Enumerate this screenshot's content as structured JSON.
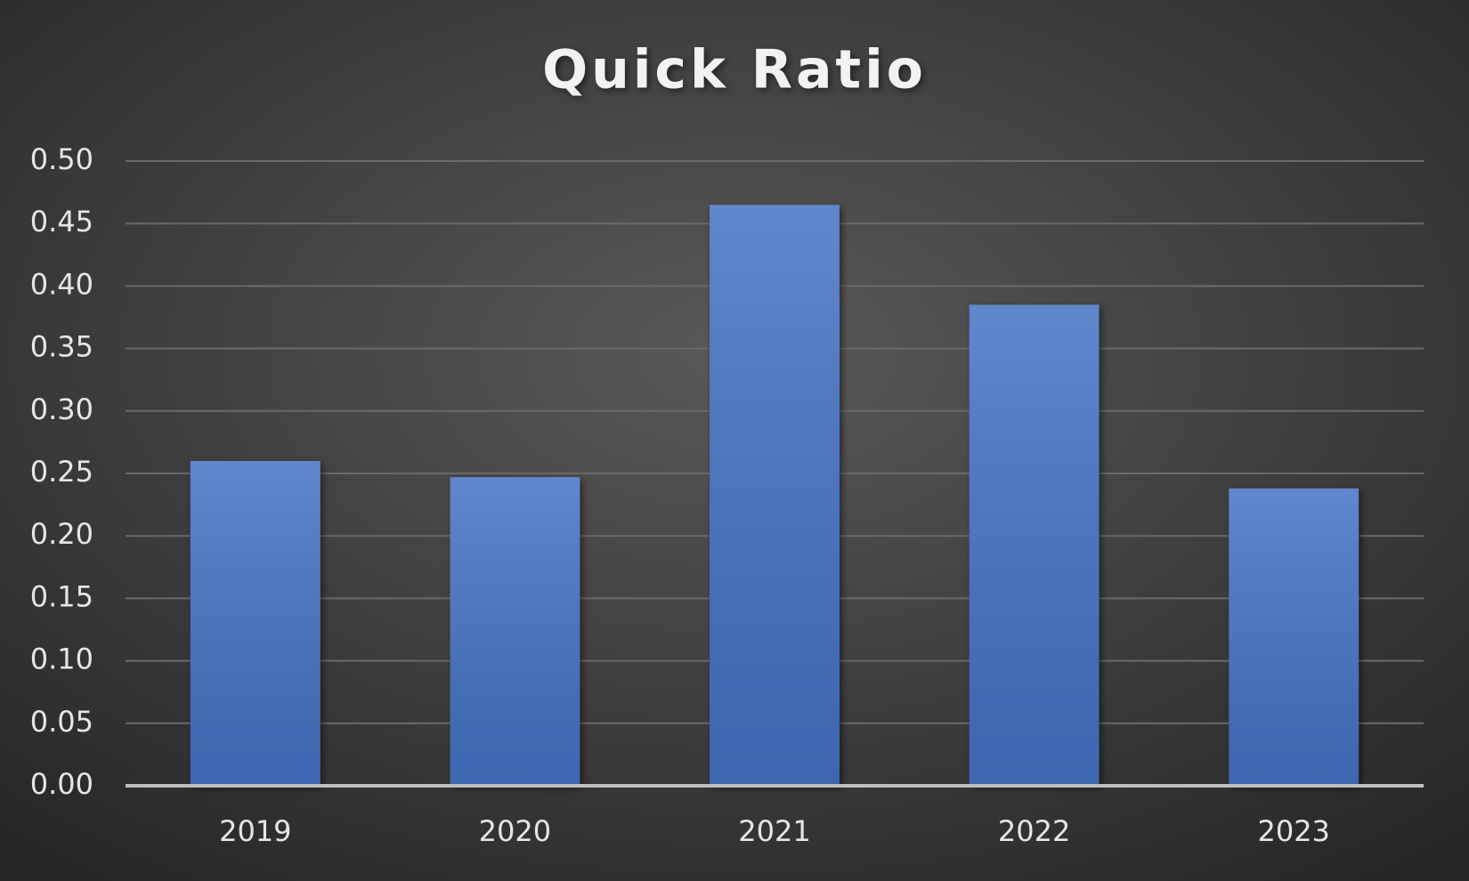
{
  "chart_data": {
    "type": "bar",
    "title": "Quick Ratio",
    "categories": [
      "2019",
      "2020",
      "2021",
      "2022",
      "2023"
    ],
    "values": [
      0.26,
      0.247,
      0.465,
      0.385,
      0.238
    ],
    "color": "#4472c4",
    "ylim": [
      0,
      0.5
    ],
    "yticks": [
      {
        "value": 0,
        "label": "0.00"
      },
      {
        "value": 0.05,
        "label": "0.05"
      },
      {
        "value": 0.1,
        "label": "0.10"
      },
      {
        "value": 0.15,
        "label": "0.15"
      },
      {
        "value": 0.2,
        "label": "0.20"
      },
      {
        "value": 0.25,
        "label": "0.25"
      },
      {
        "value": 0.3,
        "label": "0.30"
      },
      {
        "value": 0.35,
        "label": "0.35"
      },
      {
        "value": 0.4,
        "label": "0.40"
      },
      {
        "value": 0.45,
        "label": "0.45"
      },
      {
        "value": 0.5,
        "label": "0.50"
      }
    ],
    "grid": true
  }
}
